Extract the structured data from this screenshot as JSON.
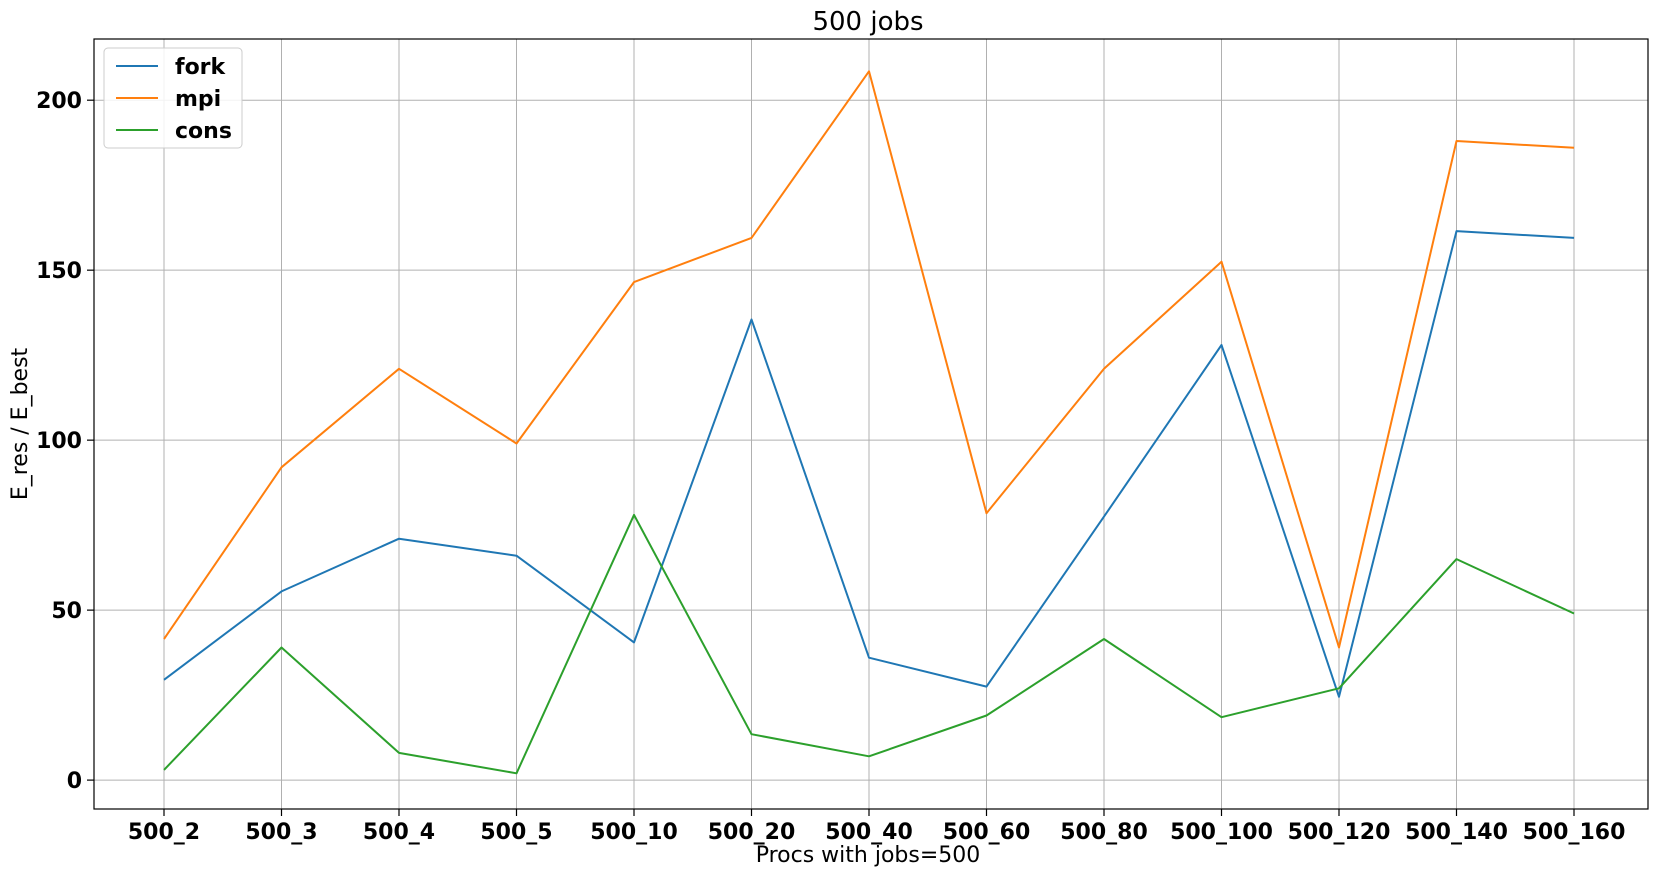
{
  "chart_data": {
    "type": "line",
    "title": "500 jobs",
    "xlabel": "Procs with jobs=500",
    "ylabel": "E_res / E_best",
    "categories": [
      "500_2",
      "500_3",
      "500_4",
      "500_5",
      "500_10",
      "500_20",
      "500_40",
      "500_60",
      "500_80",
      "500_100",
      "500_120",
      "500_140",
      "500_160"
    ],
    "ylim": [
      -8.5,
      218
    ],
    "yticks": [
      0,
      50,
      100,
      150,
      200
    ],
    "grid": true,
    "legend_position": "top-left",
    "series": [
      {
        "name": "fork",
        "color": "#1f77b4",
        "values": [
          29.5,
          55.5,
          71,
          66,
          40.5,
          135.5,
          36,
          27.5,
          77.5,
          128,
          24.5,
          161.5,
          159.5
        ]
      },
      {
        "name": "mpi",
        "color": "#ff7f0e",
        "values": [
          41.5,
          92,
          121,
          99,
          146.5,
          159.5,
          208.5,
          78.5,
          121,
          152.5,
          39,
          188,
          186
        ]
      },
      {
        "name": "cons",
        "color": "#2ca02c",
        "values": [
          3,
          39,
          8,
          2,
          78,
          13.5,
          7,
          19,
          41.5,
          18.5,
          27,
          65,
          49
        ]
      }
    ]
  }
}
